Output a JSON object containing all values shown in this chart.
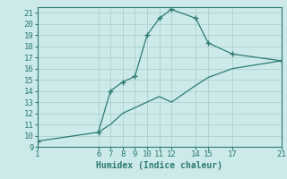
{
  "line1_x": [
    1,
    6,
    7,
    8,
    9,
    10,
    11,
    12,
    14,
    15,
    17,
    21
  ],
  "line1_y": [
    9.5,
    10.3,
    14.0,
    14.8,
    15.3,
    19.0,
    20.5,
    21.3,
    20.5,
    18.3,
    17.3,
    16.7
  ],
  "line2_x": [
    6,
    7,
    8,
    9,
    10,
    11,
    12,
    14,
    15,
    17,
    21
  ],
  "line2_y": [
    10.3,
    11.0,
    12.0,
    12.5,
    13.0,
    13.5,
    13.0,
    14.5,
    15.2,
    16.0,
    16.7
  ],
  "color": "#2d7a72",
  "bg_color": "#cceaea",
  "grid_color": "#aed0d0",
  "xlabel": "Humidex (Indice chaleur)",
  "xlim": [
    1,
    21
  ],
  "ylim": [
    9,
    21.5
  ],
  "xticks": [
    1,
    6,
    7,
    8,
    9,
    10,
    11,
    12,
    14,
    15,
    17,
    21
  ],
  "yticks": [
    9,
    10,
    11,
    12,
    13,
    14,
    15,
    16,
    17,
    18,
    19,
    20,
    21
  ],
  "xlabel_fontsize": 7,
  "tick_fontsize": 6.5
}
